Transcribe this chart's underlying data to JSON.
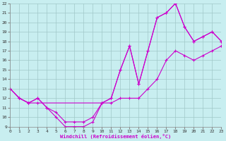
{
  "xlabel": "Windchill (Refroidissement éolien,°C)",
  "bg_color": "#c8eef0",
  "line_color": "#cc00cc",
  "xlim": [
    0,
    23
  ],
  "ylim": [
    9,
    22
  ],
  "xticks": [
    0,
    1,
    2,
    3,
    4,
    5,
    6,
    7,
    8,
    9,
    10,
    11,
    12,
    13,
    14,
    15,
    16,
    17,
    18,
    19,
    20,
    21,
    22,
    23
  ],
  "yticks": [
    9,
    10,
    11,
    12,
    13,
    14,
    15,
    16,
    17,
    18,
    19,
    20,
    21,
    22
  ],
  "line1_x": [
    0,
    1,
    2,
    3,
    4,
    5,
    6,
    7,
    8,
    9,
    10,
    11,
    12,
    13,
    14,
    15,
    16,
    17,
    18,
    19,
    20,
    21,
    22,
    23
  ],
  "line1_y": [
    13,
    12,
    11.5,
    12,
    11,
    10.5,
    9.5,
    9.5,
    9.5,
    10,
    11.5,
    12,
    15,
    17.5,
    13.5,
    17,
    20.5,
    21,
    22,
    19.5,
    18,
    18.5,
    19,
    18
  ],
  "line2_x": [
    0,
    1,
    2,
    3,
    4,
    5,
    6,
    7,
    8,
    9,
    10,
    11,
    12,
    13,
    14,
    15,
    16,
    17,
    18,
    19,
    20,
    21,
    22,
    23
  ],
  "line2_y": [
    13,
    12,
    11.5,
    12,
    11,
    10,
    9,
    9,
    9,
    9.5,
    11.5,
    11.5,
    12,
    12,
    12,
    13,
    14,
    16,
    17,
    16.5,
    16,
    16.5,
    17,
    17.5
  ],
  "line3_x": [
    0,
    1,
    2,
    3,
    10,
    11,
    12,
    13,
    14,
    15,
    16,
    17,
    18,
    19,
    20,
    21,
    22,
    23
  ],
  "line3_y": [
    13,
    12,
    11.5,
    11.5,
    11.5,
    12,
    15,
    17.5,
    13.5,
    17,
    20.5,
    21,
    22,
    19.5,
    18,
    18.5,
    19,
    18
  ]
}
